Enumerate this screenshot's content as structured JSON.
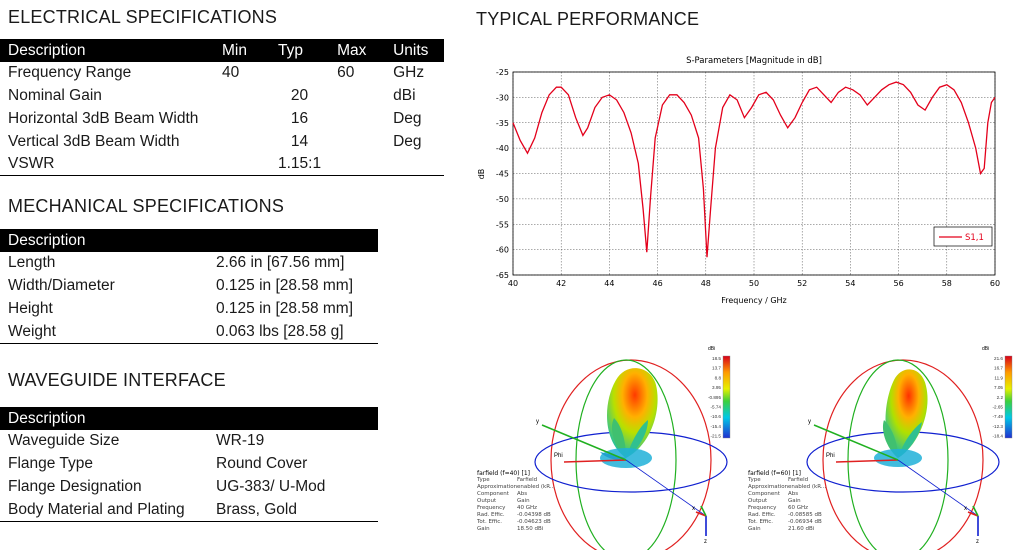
{
  "electrical": {
    "title": "ELECTRICAL SPECIFICATIONS",
    "headers": [
      "Description",
      "Min",
      "Typ",
      "Max",
      "Units"
    ],
    "rows": [
      {
        "desc": "Frequency Range",
        "min": "40",
        "typ": "",
        "max": "60",
        "units": "GHz"
      },
      {
        "desc": "Nominal Gain",
        "min": "",
        "typ": "20",
        "max": "",
        "units": "dBi"
      },
      {
        "desc": "Horizontal 3dB Beam Width",
        "min": "",
        "typ": "16",
        "max": "",
        "units": "Deg"
      },
      {
        "desc": "Vertical 3dB Beam Width",
        "min": "",
        "typ": "14",
        "max": "",
        "units": "Deg"
      },
      {
        "desc": "VSWR",
        "min": "",
        "typ": "1.15:1",
        "max": "",
        "units": ""
      }
    ]
  },
  "mechanical": {
    "title": "MECHANICAL SPECIFICATIONS",
    "header": "Description",
    "rows": [
      {
        "desc": "Length",
        "value": "2.66 in [67.56 mm]"
      },
      {
        "desc": "Width/Diameter",
        "value": "0.125 in [28.58 mm]"
      },
      {
        "desc": "Height",
        "value": "0.125 in [28.58 mm]"
      },
      {
        "desc": "Weight",
        "value": "0.063 lbs [28.58 g]"
      }
    ]
  },
  "waveguide": {
    "title": "WAVEGUIDE INTERFACE",
    "header": "Description",
    "rows": [
      {
        "desc": "Waveguide Size",
        "value": "WR-19"
      },
      {
        "desc": "Flange Type",
        "value": "Round Cover"
      },
      {
        "desc": "Flange Designation",
        "value": "UG-383/ U-Mod"
      },
      {
        "desc": "Body Material and Plating",
        "value": "Brass, Gold"
      }
    ]
  },
  "performance": {
    "title": "TYPICAL PERFORMANCE"
  },
  "chart_data": {
    "type": "line",
    "title": "S-Parameters [Magnitude in dB]",
    "xlabel": "Frequency / GHz",
    "ylabel": "dB",
    "xlim": [
      40,
      60
    ],
    "ylim": [
      -65,
      -25
    ],
    "xticks": [
      "40",
      "42",
      "44",
      "46",
      "48",
      "50",
      "52",
      "54",
      "56",
      "58",
      "60"
    ],
    "yticks": [
      "-25",
      "-30",
      "-35",
      "-40",
      "-45",
      "-50",
      "-55",
      "-60",
      "-65"
    ],
    "grid": true,
    "legend_position": "bottom-right",
    "color": "#e3001b",
    "series": [
      {
        "name": "S1,1",
        "x": [
          40,
          40.3,
          40.6,
          40.9,
          41.2,
          41.5,
          41.8,
          42.0,
          42.3,
          42.6,
          42.9,
          43.1,
          43.4,
          43.7,
          44.0,
          44.3,
          44.6,
          44.9,
          45.2,
          45.4,
          45.55,
          45.7,
          45.9,
          46.2,
          46.5,
          46.8,
          47.1,
          47.4,
          47.7,
          47.9,
          48.05,
          48.2,
          48.4,
          48.7,
          49.0,
          49.3,
          49.6,
          49.9,
          50.2,
          50.5,
          50.8,
          51.1,
          51.4,
          51.7,
          52.0,
          52.3,
          52.6,
          52.9,
          53.2,
          53.5,
          53.8,
          54.1,
          54.4,
          54.7,
          55.0,
          55.3,
          55.6,
          55.9,
          56.2,
          56.5,
          56.8,
          57.1,
          57.4,
          57.7,
          58.0,
          58.3,
          58.6,
          58.9,
          59.2,
          59.4,
          59.55,
          59.7,
          59.85,
          60
        ],
        "y": [
          -35,
          -38.5,
          -41,
          -38,
          -33,
          -29.5,
          -28,
          -28,
          -29.5,
          -34,
          -37.5,
          -36,
          -32,
          -30,
          -29.5,
          -30.5,
          -33,
          -37,
          -43,
          -52,
          -60.5,
          -50,
          -38,
          -31.5,
          -29.5,
          -29.5,
          -31,
          -33.5,
          -38,
          -48,
          -61.5,
          -52,
          -40,
          -32,
          -29.5,
          -30.5,
          -34,
          -32,
          -29.5,
          -29,
          -30.5,
          -33.5,
          -36,
          -34,
          -31,
          -28.5,
          -28,
          -29.5,
          -31,
          -29,
          -28,
          -28.5,
          -29.5,
          -31.5,
          -30,
          -28.5,
          -27.5,
          -27,
          -27.5,
          -29,
          -31.5,
          -32.5,
          -30,
          -28,
          -27.5,
          -28.5,
          -31,
          -35,
          -40,
          -45,
          -44,
          -35,
          -31,
          -30
        ]
      }
    ]
  },
  "farfield1": {
    "colorbar_unit": "dBi",
    "ticks": [
      "18.5",
      "13.7",
      "8.8",
      "3.95",
      "-0.895",
      "-5.74",
      "-10.6",
      "-15.4",
      "-21.5"
    ],
    "title": "farfield (f=40) [1]",
    "rows": [
      [
        "Type",
        "Farfield"
      ],
      [
        "Approximation",
        "enabled (kR..."
      ],
      [
        "Component",
        "Abs"
      ],
      [
        "Output",
        "Gain"
      ],
      [
        "Frequency",
        "40 GHz"
      ],
      [
        "Rad. Effic.",
        "-0.04398 dB"
      ],
      [
        "Tot. Effic.",
        "-0.04623 dB"
      ],
      [
        "Gain",
        "18.50 dBi"
      ]
    ]
  },
  "farfield2": {
    "colorbar_unit": "dBi",
    "ticks": [
      "21.6",
      "16.7",
      "11.9",
      "7.05",
      "2.2",
      "-2.65",
      "-7.49",
      "-12.3",
      "-18.4"
    ],
    "title": "farfield (f=60) [1]",
    "rows": [
      [
        "Type",
        "Farfield"
      ],
      [
        "Approximation",
        "enabled (kR..."
      ],
      [
        "Component",
        "Abs"
      ],
      [
        "Output",
        "Gain"
      ],
      [
        "Frequency",
        "60 GHz"
      ],
      [
        "Rad. Effic.",
        "-0.08585 dB"
      ],
      [
        "Tot. Effic.",
        "-0.06934 dB"
      ],
      [
        "Gain",
        "21.60 dBi"
      ]
    ]
  },
  "axes": {
    "x": "x",
    "y": "y",
    "z": "z",
    "phi": "Phi"
  }
}
